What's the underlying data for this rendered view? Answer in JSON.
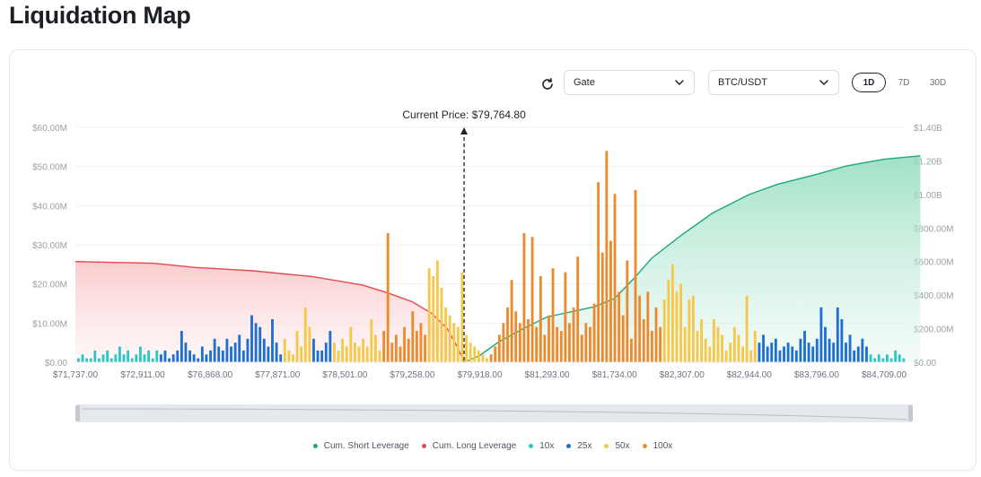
{
  "page": {
    "title": "Liquidation Map"
  },
  "controls": {
    "exchange": "Gate",
    "pair": "BTC/USDT",
    "timeframes": [
      "1D",
      "7D",
      "30D"
    ],
    "active_timeframe": "1D"
  },
  "colors": {
    "short": "#1fa878",
    "long": "#e5484d",
    "x10": "#2ac7c7",
    "x25": "#1e6fd0",
    "x50": "#f5c84a",
    "x100": "#ec8a2f"
  },
  "chart_data": {
    "type": "bar",
    "current_price_label": "Current Price: $79,764.80",
    "current_price": 79764.8,
    "x_tick_labels": [
      "$71,737.00",
      "$72,911.00",
      "$76,868.00",
      "$77,871.00",
      "$78,501.00",
      "$79,258.00",
      "$79,918.00",
      "$81,293.00",
      "$81,734.00",
      "$82,307.00",
      "$82,944.00",
      "$83,796.00",
      "$84,709.00"
    ],
    "y_left": {
      "ticks": [
        "$0.00",
        "$10.00M",
        "$20.00M",
        "$30.00M",
        "$40.00M",
        "$50.00M",
        "$60.00M"
      ],
      "range": [
        0,
        60
      ]
    },
    "y_right": {
      "ticks": [
        "$0.00",
        "$200.00M",
        "$400.00M",
        "$600.00M",
        "$800.00M",
        "$1.00B",
        "$1.20B",
        "$1.40B"
      ],
      "range": [
        0,
        1400
      ]
    },
    "series": [
      {
        "name": "Cum. Short Leverage",
        "type": "area-line"
      },
      {
        "name": "Cum. Long Leverage",
        "type": "area-line"
      },
      {
        "name": "10x",
        "type": "bar"
      },
      {
        "name": "25x",
        "type": "bar"
      },
      {
        "name": "50x",
        "type": "bar"
      },
      {
        "name": "100x",
        "type": "bar"
      }
    ],
    "bars": [
      [
        1,
        "10x"
      ],
      [
        2,
        "10x"
      ],
      [
        1,
        "10x"
      ],
      [
        1,
        "10x"
      ],
      [
        3,
        "10x"
      ],
      [
        1,
        "10x"
      ],
      [
        2,
        "10x"
      ],
      [
        3,
        "10x"
      ],
      [
        1,
        "10x"
      ],
      [
        2,
        "10x"
      ],
      [
        4,
        "10x"
      ],
      [
        2,
        "10x"
      ],
      [
        3,
        "10x"
      ],
      [
        1,
        "10x"
      ],
      [
        2,
        "10x"
      ],
      [
        4,
        "10x"
      ],
      [
        2,
        "10x"
      ],
      [
        3,
        "10x"
      ],
      [
        1,
        "10x"
      ],
      [
        3,
        "10x"
      ],
      [
        2,
        "25x"
      ],
      [
        3,
        "25x"
      ],
      [
        1,
        "25x"
      ],
      [
        2,
        "25x"
      ],
      [
        3,
        "25x"
      ],
      [
        8,
        "25x"
      ],
      [
        5,
        "25x"
      ],
      [
        3,
        "25x"
      ],
      [
        2,
        "25x"
      ],
      [
        1,
        "25x"
      ],
      [
        4,
        "25x"
      ],
      [
        2,
        "25x"
      ],
      [
        3,
        "25x"
      ],
      [
        6,
        "25x"
      ],
      [
        4,
        "25x"
      ],
      [
        3,
        "25x"
      ],
      [
        6,
        "25x"
      ],
      [
        4,
        "25x"
      ],
      [
        5,
        "25x"
      ],
      [
        7,
        "25x"
      ],
      [
        3,
        "25x"
      ],
      [
        6,
        "25x"
      ],
      [
        12,
        "25x"
      ],
      [
        10,
        "25x"
      ],
      [
        9,
        "25x"
      ],
      [
        6,
        "25x"
      ],
      [
        4,
        "25x"
      ],
      [
        11,
        "25x"
      ],
      [
        5,
        "25x"
      ],
      [
        2,
        "25x"
      ],
      [
        6,
        "50x"
      ],
      [
        3,
        "50x"
      ],
      [
        2,
        "50x"
      ],
      [
        8,
        "50x"
      ],
      [
        4,
        "50x"
      ],
      [
        14,
        "50x"
      ],
      [
        9,
        "50x"
      ],
      [
        6,
        "25x"
      ],
      [
        3,
        "25x"
      ],
      [
        3,
        "25x"
      ],
      [
        5,
        "25x"
      ],
      [
        8,
        "25x"
      ],
      [
        5,
        "50x"
      ],
      [
        3,
        "50x"
      ],
      [
        6,
        "50x"
      ],
      [
        4,
        "50x"
      ],
      [
        9,
        "50x"
      ],
      [
        5,
        "50x"
      ],
      [
        4,
        "50x"
      ],
      [
        6,
        "50x"
      ],
      [
        4,
        "50x"
      ],
      [
        11,
        "50x"
      ],
      [
        7,
        "50x"
      ],
      [
        3,
        "50x"
      ],
      [
        8,
        "100x"
      ],
      [
        33,
        "100x"
      ],
      [
        5,
        "100x"
      ],
      [
        7,
        "100x"
      ],
      [
        4,
        "100x"
      ],
      [
        9,
        "100x"
      ],
      [
        6,
        "100x"
      ],
      [
        13,
        "100x"
      ],
      [
        8,
        "100x"
      ],
      [
        10,
        "100x"
      ],
      [
        7,
        "100x"
      ],
      [
        24,
        "50x"
      ],
      [
        22,
        "50x"
      ],
      [
        26,
        "50x"
      ],
      [
        19,
        "50x"
      ],
      [
        14,
        "50x"
      ],
      [
        12,
        "50x"
      ],
      [
        10,
        "50x"
      ],
      [
        9,
        "50x"
      ],
      [
        23,
        "50x"
      ],
      [
        7,
        "50x"
      ],
      [
        5,
        "50x"
      ],
      [
        4,
        "50x"
      ],
      [
        3,
        "50x"
      ],
      [
        2,
        "50x"
      ],
      [
        1,
        "50x"
      ],
      [
        2,
        "100x"
      ],
      [
        4,
        "100x"
      ],
      [
        7,
        "100x"
      ],
      [
        10,
        "100x"
      ],
      [
        14,
        "100x"
      ],
      [
        21,
        "100x"
      ],
      [
        13,
        "100x"
      ],
      [
        10,
        "100x"
      ],
      [
        33,
        "100x"
      ],
      [
        11,
        "100x"
      ],
      [
        32,
        "100x"
      ],
      [
        9,
        "100x"
      ],
      [
        22,
        "100x"
      ],
      [
        7,
        "100x"
      ],
      [
        12,
        "100x"
      ],
      [
        24,
        "100x"
      ],
      [
        9,
        "100x"
      ],
      [
        8,
        "100x"
      ],
      [
        23,
        "100x"
      ],
      [
        10,
        "100x"
      ],
      [
        14,
        "100x"
      ],
      [
        27,
        "100x"
      ],
      [
        7,
        "100x"
      ],
      [
        10,
        "100x"
      ],
      [
        9,
        "100x"
      ],
      [
        15,
        "100x"
      ],
      [
        46,
        "100x"
      ],
      [
        28,
        "100x"
      ],
      [
        54,
        "100x"
      ],
      [
        31,
        "100x"
      ],
      [
        43,
        "100x"
      ],
      [
        18,
        "100x"
      ],
      [
        12,
        "100x"
      ],
      [
        26,
        "100x"
      ],
      [
        6,
        "100x"
      ],
      [
        44,
        "100x"
      ],
      [
        17,
        "100x"
      ],
      [
        11,
        "100x"
      ],
      [
        18,
        "100x"
      ],
      [
        8,
        "100x"
      ],
      [
        14,
        "100x"
      ],
      [
        9,
        "100x"
      ],
      [
        16,
        "50x"
      ],
      [
        21,
        "50x"
      ],
      [
        25,
        "50x"
      ],
      [
        18,
        "50x"
      ],
      [
        20,
        "50x"
      ],
      [
        9,
        "50x"
      ],
      [
        16,
        "50x"
      ],
      [
        17,
        "50x"
      ],
      [
        8,
        "50x"
      ],
      [
        11,
        "50x"
      ],
      [
        6,
        "50x"
      ],
      [
        4,
        "50x"
      ],
      [
        11,
        "50x"
      ],
      [
        9,
        "50x"
      ],
      [
        7,
        "50x"
      ],
      [
        3,
        "50x"
      ],
      [
        5,
        "50x"
      ],
      [
        9,
        "50x"
      ],
      [
        7,
        "50x"
      ],
      [
        4,
        "50x"
      ],
      [
        17,
        "50x"
      ],
      [
        3,
        "50x"
      ],
      [
        8,
        "50x"
      ],
      [
        5,
        "25x"
      ],
      [
        7,
        "25x"
      ],
      [
        4,
        "25x"
      ],
      [
        5,
        "25x"
      ],
      [
        6,
        "25x"
      ],
      [
        3,
        "25x"
      ],
      [
        4,
        "25x"
      ],
      [
        5,
        "25x"
      ],
      [
        4,
        "25x"
      ],
      [
        3,
        "25x"
      ],
      [
        6,
        "25x"
      ],
      [
        8,
        "25x"
      ],
      [
        5,
        "25x"
      ],
      [
        4,
        "25x"
      ],
      [
        6,
        "25x"
      ],
      [
        14,
        "25x"
      ],
      [
        9,
        "25x"
      ],
      [
        6,
        "25x"
      ],
      [
        5,
        "25x"
      ],
      [
        14,
        "25x"
      ],
      [
        11,
        "25x"
      ],
      [
        5,
        "25x"
      ],
      [
        7,
        "25x"
      ],
      [
        3,
        "25x"
      ],
      [
        4,
        "25x"
      ],
      [
        6,
        "25x"
      ],
      [
        4,
        "25x"
      ],
      [
        2,
        "10x"
      ],
      [
        1,
        "10x"
      ],
      [
        2,
        "10x"
      ],
      [
        1,
        "10x"
      ],
      [
        2,
        "10x"
      ],
      [
        1,
        "10x"
      ],
      [
        3,
        "10x"
      ],
      [
        2,
        "10x"
      ],
      [
        1,
        "10x"
      ]
    ],
    "cum_long": [
      [
        71737,
        600
      ],
      [
        73500,
        590
      ],
      [
        76000,
        565
      ],
      [
        77500,
        545
      ],
      [
        78200,
        510
      ],
      [
        78700,
        460
      ],
      [
        79000,
        410
      ],
      [
        79258,
        360
      ],
      [
        79450,
        290
      ],
      [
        79600,
        200
      ],
      [
        79700,
        90
      ],
      [
        79764.8,
        0
      ]
    ],
    "cum_short": [
      [
        79764.8,
        0
      ],
      [
        79918,
        40
      ],
      [
        80300,
        120
      ],
      [
        80800,
        200
      ],
      [
        81293,
        270
      ],
      [
        81600,
        330
      ],
      [
        81734,
        380
      ],
      [
        81900,
        500
      ],
      [
        82050,
        620
      ],
      [
        82307,
        760
      ],
      [
        82600,
        890
      ],
      [
        82944,
        1000
      ],
      [
        83300,
        1060
      ],
      [
        83796,
        1120
      ],
      [
        84200,
        1170
      ],
      [
        84709,
        1210
      ],
      [
        85200,
        1230
      ]
    ]
  }
}
